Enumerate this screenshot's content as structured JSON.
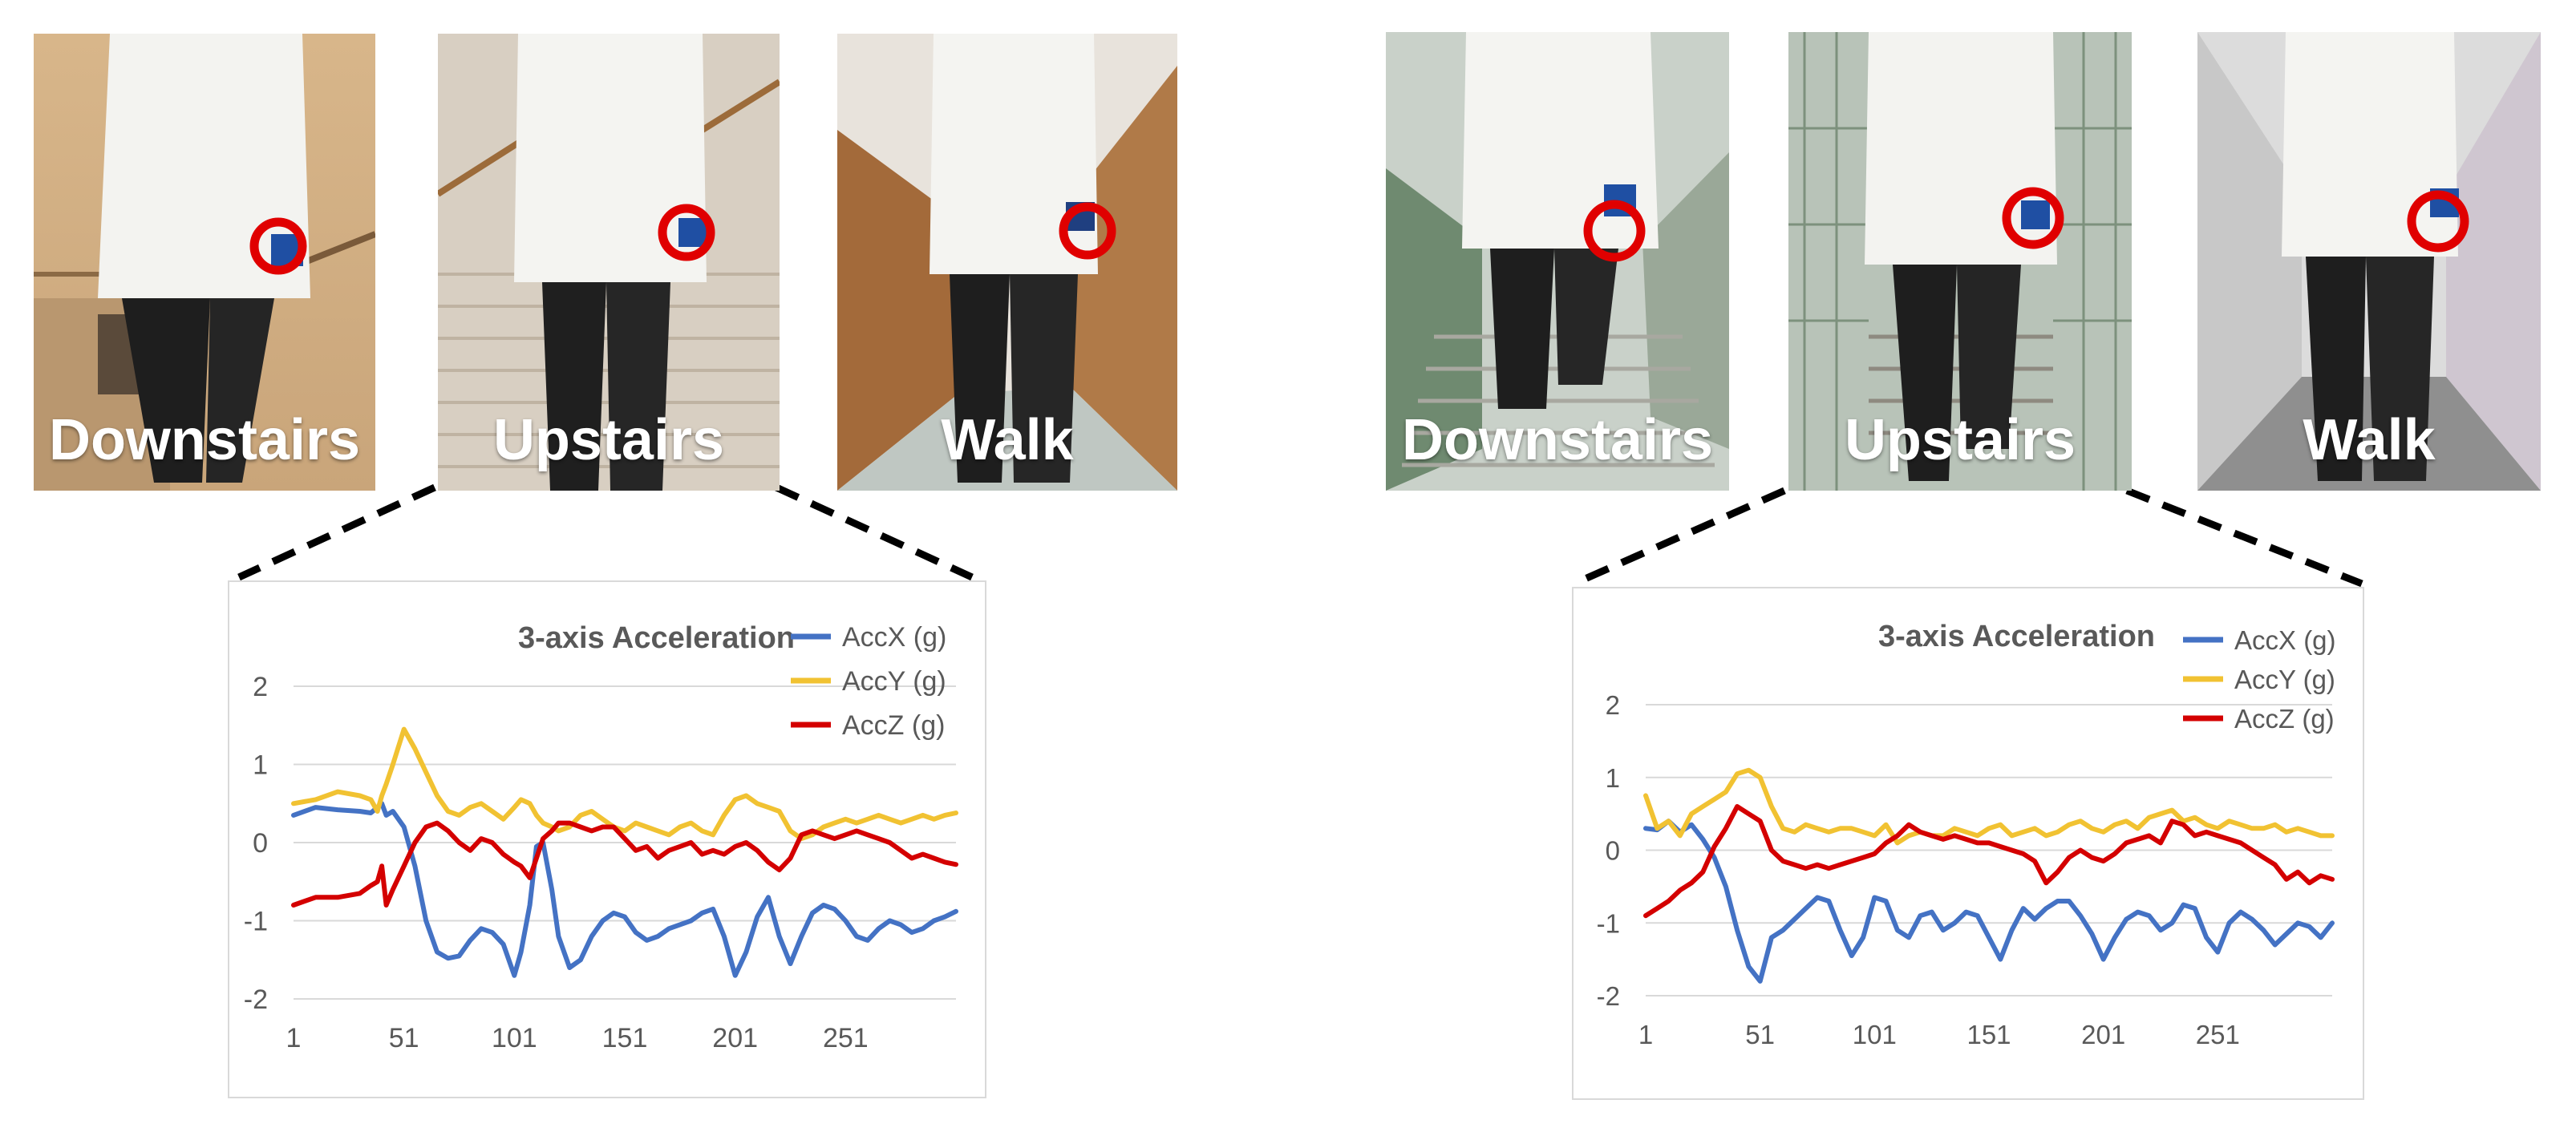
{
  "colors": {
    "accx": "#4472c4",
    "accy": "#f1c232",
    "accz": "#d40000",
    "marker": "#e00000",
    "grid": "#d9d9d9",
    "axis_text": "#595959"
  },
  "groups": [
    {
      "photos": [
        {
          "label": "Downstairs",
          "scene": "stairs-down-warm"
        },
        {
          "label": "Upstairs",
          "scene": "stairs-up-indoor"
        },
        {
          "label": "Walk",
          "scene": "corridor-wood"
        }
      ]
    },
    {
      "photos": [
        {
          "label": "Downstairs",
          "scene": "stairs-down-outdoor"
        },
        {
          "label": "Upstairs",
          "scene": "stairs-up-outdoor"
        },
        {
          "label": "Walk",
          "scene": "corridor-grey"
        }
      ]
    }
  ],
  "chart_data": [
    {
      "type": "line",
      "title": "3-axis Acceleration",
      "xlabel": "",
      "ylabel": "",
      "x_ticks": [
        "1",
        "51",
        "101",
        "151",
        "201",
        "251"
      ],
      "y_ticks": [
        "2",
        "1",
        "0",
        "-1",
        "-2"
      ],
      "ylim": [
        -2,
        2
      ],
      "xlim": [
        1,
        301
      ],
      "grid": true,
      "legend": "top-right",
      "x": [
        1,
        11,
        21,
        31,
        36,
        39,
        41,
        43,
        46,
        51,
        56,
        61,
        66,
        71,
        76,
        81,
        86,
        91,
        96,
        101,
        104,
        108,
        111,
        114,
        118,
        121,
        126,
        131,
        136,
        141,
        146,
        151,
        156,
        161,
        166,
        171,
        176,
        181,
        186,
        191,
        196,
        201,
        206,
        211,
        216,
        221,
        226,
        231,
        236,
        241,
        246,
        251,
        256,
        261,
        266,
        271,
        276,
        281,
        286,
        291,
        296,
        301
      ],
      "series": [
        {
          "name": "AccX (g)",
          "color_key": "accx",
          "values": [
            0.35,
            0.45,
            0.42,
            0.4,
            0.38,
            0.45,
            0.5,
            0.35,
            0.4,
            0.2,
            -0.3,
            -1.0,
            -1.4,
            -1.48,
            -1.45,
            -1.25,
            -1.1,
            -1.15,
            -1.3,
            -1.7,
            -1.4,
            -0.8,
            -0.05,
            0.0,
            -0.6,
            -1.2,
            -1.6,
            -1.5,
            -1.2,
            -1.0,
            -0.9,
            -0.95,
            -1.15,
            -1.25,
            -1.2,
            -1.1,
            -1.05,
            -1.0,
            -0.9,
            -0.85,
            -1.2,
            -1.7,
            -1.4,
            -0.95,
            -0.7,
            -1.2,
            -1.55,
            -1.2,
            -0.9,
            -0.8,
            -0.85,
            -1.0,
            -1.2,
            -1.25,
            -1.1,
            -1.0,
            -1.05,
            -1.15,
            -1.1,
            -1.0,
            -0.95,
            -0.88
          ]
        },
        {
          "name": "AccY (g)",
          "color_key": "accy",
          "values": [
            0.5,
            0.55,
            0.65,
            0.6,
            0.55,
            0.4,
            0.6,
            0.75,
            1.0,
            1.45,
            1.2,
            0.9,
            0.6,
            0.4,
            0.35,
            0.45,
            0.5,
            0.4,
            0.3,
            0.45,
            0.55,
            0.5,
            0.35,
            0.25,
            0.2,
            0.15,
            0.2,
            0.35,
            0.4,
            0.3,
            0.2,
            0.15,
            0.25,
            0.2,
            0.15,
            0.1,
            0.2,
            0.25,
            0.15,
            0.1,
            0.35,
            0.55,
            0.6,
            0.5,
            0.45,
            0.4,
            0.15,
            0.05,
            0.1,
            0.2,
            0.25,
            0.3,
            0.25,
            0.3,
            0.35,
            0.3,
            0.25,
            0.3,
            0.35,
            0.3,
            0.35,
            0.38
          ]
        },
        {
          "name": "AccZ (g)",
          "color_key": "accz",
          "values": [
            -0.8,
            -0.7,
            -0.7,
            -0.65,
            -0.55,
            -0.5,
            -0.3,
            -0.8,
            -0.6,
            -0.3,
            0.0,
            0.2,
            0.25,
            0.15,
            0.0,
            -0.1,
            0.05,
            0.0,
            -0.15,
            -0.25,
            -0.3,
            -0.45,
            -0.2,
            0.05,
            0.15,
            0.25,
            0.25,
            0.2,
            0.15,
            0.2,
            0.2,
            0.05,
            -0.1,
            -0.05,
            -0.2,
            -0.1,
            -0.05,
            0.0,
            -0.15,
            -0.1,
            -0.15,
            -0.05,
            0.0,
            -0.1,
            -0.25,
            -0.35,
            -0.2,
            0.1,
            0.15,
            0.1,
            0.05,
            0.1,
            0.15,
            0.1,
            0.05,
            0.0,
            -0.1,
            -0.2,
            -0.15,
            -0.2,
            -0.25,
            -0.28
          ]
        }
      ]
    },
    {
      "type": "line",
      "title": "3-axis Acceleration",
      "xlabel": "",
      "ylabel": "",
      "x_ticks": [
        "1",
        "51",
        "101",
        "151",
        "201",
        "251"
      ],
      "y_ticks": [
        "2",
        "1",
        "0",
        "-1",
        "-2"
      ],
      "ylim": [
        -2,
        2
      ],
      "xlim": [
        1,
        301
      ],
      "grid": true,
      "legend": "top-right",
      "x": [
        1,
        6,
        11,
        16,
        21,
        26,
        31,
        36,
        41,
        46,
        51,
        56,
        61,
        66,
        71,
        76,
        81,
        86,
        91,
        96,
        101,
        106,
        111,
        116,
        121,
        126,
        131,
        136,
        141,
        146,
        151,
        156,
        161,
        166,
        171,
        176,
        181,
        186,
        191,
        196,
        201,
        206,
        211,
        216,
        221,
        226,
        231,
        236,
        241,
        246,
        251,
        256,
        261,
        266,
        271,
        276,
        281,
        286,
        291,
        296,
        301
      ],
      "series": [
        {
          "name": "AccX (g)",
          "color_key": "accx",
          "values": [
            0.3,
            0.28,
            0.4,
            0.25,
            0.35,
            0.15,
            -0.1,
            -0.5,
            -1.1,
            -1.6,
            -1.8,
            -1.2,
            -1.1,
            -0.95,
            -0.8,
            -0.65,
            -0.7,
            -1.1,
            -1.45,
            -1.2,
            -0.65,
            -0.7,
            -1.1,
            -1.2,
            -0.9,
            -0.85,
            -1.1,
            -1.0,
            -0.85,
            -0.9,
            -1.2,
            -1.5,
            -1.1,
            -0.8,
            -0.95,
            -0.8,
            -0.7,
            -0.7,
            -0.9,
            -1.15,
            -1.5,
            -1.2,
            -0.95,
            -0.85,
            -0.9,
            -1.1,
            -1.0,
            -0.75,
            -0.8,
            -1.2,
            -1.4,
            -1.0,
            -0.85,
            -0.95,
            -1.1,
            -1.3,
            -1.15,
            -1.0,
            -1.05,
            -1.2,
            -1.0
          ]
        },
        {
          "name": "AccY (g)",
          "color_key": "accy",
          "values": [
            0.75,
            0.3,
            0.4,
            0.2,
            0.5,
            0.6,
            0.7,
            0.8,
            1.05,
            1.1,
            1.0,
            0.6,
            0.3,
            0.25,
            0.35,
            0.3,
            0.25,
            0.3,
            0.3,
            0.25,
            0.2,
            0.35,
            0.1,
            0.2,
            0.25,
            0.2,
            0.2,
            0.3,
            0.25,
            0.2,
            0.3,
            0.35,
            0.2,
            0.25,
            0.3,
            0.2,
            0.25,
            0.35,
            0.4,
            0.3,
            0.25,
            0.35,
            0.4,
            0.3,
            0.45,
            0.5,
            0.55,
            0.4,
            0.45,
            0.35,
            0.3,
            0.4,
            0.35,
            0.3,
            0.3,
            0.35,
            0.25,
            0.3,
            0.25,
            0.2,
            0.2
          ]
        },
        {
          "name": "AccZ (g)",
          "color_key": "accz",
          "values": [
            -0.9,
            -0.8,
            -0.7,
            -0.55,
            -0.45,
            -0.3,
            0.05,
            0.3,
            0.6,
            0.5,
            0.4,
            0.0,
            -0.15,
            -0.2,
            -0.25,
            -0.2,
            -0.25,
            -0.2,
            -0.15,
            -0.1,
            -0.05,
            0.1,
            0.2,
            0.35,
            0.25,
            0.2,
            0.15,
            0.2,
            0.15,
            0.1,
            0.1,
            0.05,
            0.0,
            -0.05,
            -0.15,
            -0.45,
            -0.3,
            -0.1,
            0.0,
            -0.1,
            -0.15,
            -0.05,
            0.1,
            0.15,
            0.2,
            0.1,
            0.4,
            0.35,
            0.2,
            0.25,
            0.2,
            0.15,
            0.1,
            0.0,
            -0.1,
            -0.2,
            -0.4,
            -0.3,
            -0.45,
            -0.35,
            -0.4
          ]
        }
      ]
    }
  ]
}
